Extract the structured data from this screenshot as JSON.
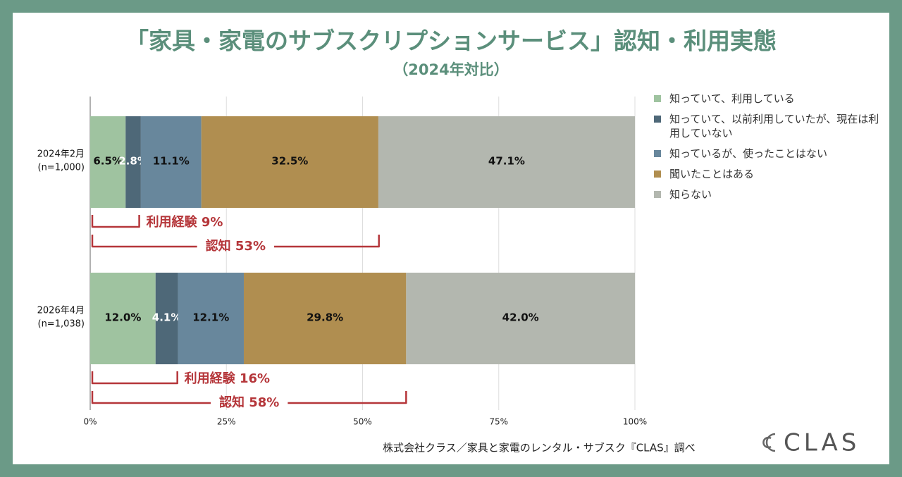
{
  "chart_data": {
    "type": "stacked-bar",
    "title": "「家具・家電のサブスクリプションサービス」認知・利用実態",
    "subtitle": "（2024年対比）",
    "categories": [
      "2024年2月",
      "2026年4月"
    ],
    "sample_sizes": [
      "(n=1,000)",
      "(n=1,038)"
    ],
    "series": [
      {
        "name": "知っていて、利用している",
        "color": "#9fc3a0",
        "label_color": "#111",
        "values": [
          6.5,
          12.0
        ],
        "value_labels": [
          "6.5%",
          "12.0%"
        ]
      },
      {
        "name": "知っていて、以前利用していたが、現在は利用していない",
        "color": "#4e6878",
        "label_color": "#fff",
        "values": [
          2.8,
          4.1
        ],
        "value_labels": [
          "2.8%",
          "4.1%"
        ]
      },
      {
        "name": "知っているが、使ったことはない",
        "color": "#68879c",
        "label_color": "#111",
        "values": [
          11.1,
          12.1
        ],
        "value_labels": [
          "11.1%",
          "12.1%"
        ]
      },
      {
        "name": "聞いたことはある",
        "color": "#b08e50",
        "label_color": "#111",
        "values": [
          32.5,
          29.8
        ],
        "value_labels": [
          "32.5%",
          "29.8%"
        ]
      },
      {
        "name": "知らない",
        "color": "#b3b7af",
        "label_color": "#111",
        "values": [
          47.1,
          42.0
        ],
        "value_labels": [
          "47.1%",
          "42.0%"
        ]
      }
    ],
    "annotations": [
      [
        {
          "text": "利用経験 9%",
          "value": 9
        },
        {
          "text": "認知 53%",
          "value": 53
        }
      ],
      [
        {
          "text": "利用経験 16%",
          "value": 16
        },
        {
          "text": "認知 58%",
          "value": 58
        }
      ]
    ],
    "xlim": [
      0,
      100
    ],
    "xticks": [
      {
        "value": 0,
        "label": "0%"
      },
      {
        "value": 25,
        "label": "25%"
      },
      {
        "value": 50,
        "label": "50%"
      },
      {
        "value": 75,
        "label": "75%"
      },
      {
        "value": 100,
        "label": "100%"
      }
    ],
    "grid": true
  },
  "footer": {
    "source": "株式会社クラス／家具と家電のレンタル・サブスク『CLAS』調べ",
    "logo": "CLAS"
  }
}
